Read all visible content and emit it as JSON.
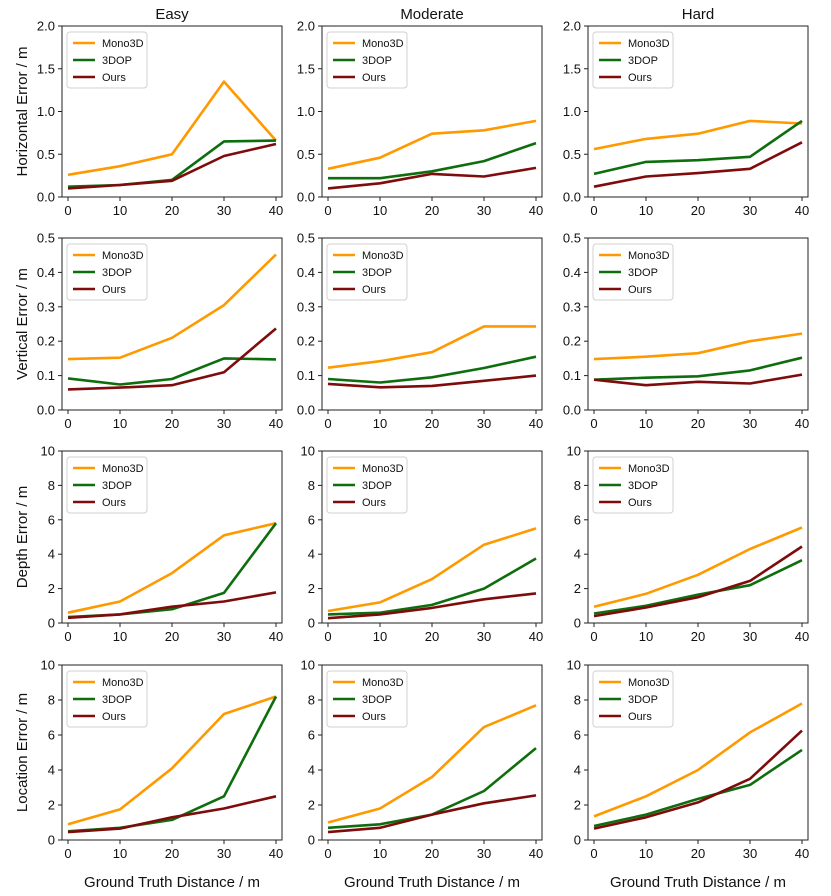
{
  "colors": {
    "Mono3D": "#ff9900",
    "3DOP": "#0e6e0e",
    "Ours": "#7f0c0c",
    "axis": "#222222",
    "legend_border": "#d0d0d0"
  },
  "figure": {
    "column_titles": [
      "Easy",
      "Moderate",
      "Hard"
    ],
    "xlabel": "Ground Truth Distance / m"
  },
  "chart_data": [
    {
      "type": "line",
      "row": 0,
      "col": 0,
      "title": "Easy",
      "xlabel": "",
      "ylabel": "Horizontal Error / m",
      "xlim": [
        0,
        40
      ],
      "ylim": [
        0,
        2.0
      ],
      "x": [
        0,
        10,
        20,
        30,
        40
      ],
      "xticks": [
        "0",
        "10",
        "20",
        "30",
        "40"
      ],
      "yticks": [
        "0.0",
        "0.5",
        "1.0",
        "1.5",
        "2.0"
      ],
      "yticks_values": [
        0,
        0.5,
        1.0,
        1.5,
        2.0
      ],
      "legend": [
        "Mono3D",
        "3DOP",
        "Ours"
      ],
      "legend_position": "top-left",
      "series": [
        {
          "name": "Mono3D",
          "values": [
            0.26,
            0.36,
            0.5,
            1.35,
            0.66
          ]
        },
        {
          "name": "3DOP",
          "values": [
            0.12,
            0.14,
            0.2,
            0.65,
            0.66
          ]
        },
        {
          "name": "Ours",
          "values": [
            0.1,
            0.14,
            0.19,
            0.48,
            0.62
          ]
        }
      ]
    },
    {
      "type": "line",
      "row": 0,
      "col": 1,
      "title": "Moderate",
      "xlabel": "",
      "ylabel": "",
      "xlim": [
        0,
        40
      ],
      "ylim": [
        0,
        2.0
      ],
      "x": [
        0,
        10,
        20,
        30,
        40
      ],
      "xticks": [
        "0",
        "10",
        "20",
        "30",
        "40"
      ],
      "yticks": [
        "0.0",
        "0.5",
        "1.0",
        "1.5",
        "2.0"
      ],
      "yticks_values": [
        0,
        0.5,
        1.0,
        1.5,
        2.0
      ],
      "legend": [
        "Mono3D",
        "3DOP",
        "Ours"
      ],
      "legend_position": "top-left",
      "series": [
        {
          "name": "Mono3D",
          "values": [
            0.33,
            0.46,
            0.74,
            0.78,
            0.89
          ]
        },
        {
          "name": "3DOP",
          "values": [
            0.22,
            0.22,
            0.3,
            0.42,
            0.63
          ]
        },
        {
          "name": "Ours",
          "values": [
            0.1,
            0.16,
            0.27,
            0.24,
            0.34
          ]
        }
      ]
    },
    {
      "type": "line",
      "row": 0,
      "col": 2,
      "title": "Hard",
      "xlabel": "",
      "ylabel": "",
      "xlim": [
        0,
        40
      ],
      "ylim": [
        0,
        2.0
      ],
      "x": [
        0,
        10,
        20,
        30,
        40
      ],
      "xticks": [
        "0",
        "10",
        "20",
        "30",
        "40"
      ],
      "yticks": [
        "0.0",
        "0.5",
        "1.0",
        "1.5",
        "2.0"
      ],
      "yticks_values": [
        0,
        0.5,
        1.0,
        1.5,
        2.0
      ],
      "legend": [
        "Mono3D",
        "3DOP",
        "Ours"
      ],
      "legend_position": "top-left",
      "series": [
        {
          "name": "Mono3D",
          "values": [
            0.56,
            0.68,
            0.74,
            0.89,
            0.86
          ]
        },
        {
          "name": "3DOP",
          "values": [
            0.27,
            0.41,
            0.43,
            0.47,
            0.89
          ]
        },
        {
          "name": "Ours",
          "values": [
            0.12,
            0.24,
            0.28,
            0.33,
            0.64
          ]
        }
      ]
    },
    {
      "type": "line",
      "row": 1,
      "col": 0,
      "title": "",
      "xlabel": "",
      "ylabel": "Vertical Error / m",
      "xlim": [
        0,
        40
      ],
      "ylim": [
        0,
        0.5
      ],
      "x": [
        0,
        10,
        20,
        30,
        40
      ],
      "xticks": [
        "0",
        "10",
        "20",
        "30",
        "40"
      ],
      "yticks": [
        "0.0",
        "0.1",
        "0.2",
        "0.3",
        "0.4",
        "0.5"
      ],
      "yticks_values": [
        0,
        0.1,
        0.2,
        0.3,
        0.4,
        0.5
      ],
      "legend": [
        "Mono3D",
        "3DOP",
        "Ours"
      ],
      "legend_position": "top-left",
      "series": [
        {
          "name": "Mono3D",
          "values": [
            0.148,
            0.152,
            0.21,
            0.305,
            0.452
          ]
        },
        {
          "name": "3DOP",
          "values": [
            0.092,
            0.074,
            0.09,
            0.15,
            0.147
          ]
        },
        {
          "name": "Ours",
          "values": [
            0.06,
            0.065,
            0.072,
            0.11,
            0.237
          ]
        }
      ]
    },
    {
      "type": "line",
      "row": 1,
      "col": 1,
      "title": "",
      "xlabel": "",
      "ylabel": "",
      "xlim": [
        0,
        40
      ],
      "ylim": [
        0,
        0.5
      ],
      "x": [
        0,
        10,
        20,
        30,
        40
      ],
      "xticks": [
        "0",
        "10",
        "20",
        "30",
        "40"
      ],
      "yticks": [
        "0.0",
        "0.1",
        "0.2",
        "0.3",
        "0.4",
        "0.5"
      ],
      "yticks_values": [
        0,
        0.1,
        0.2,
        0.3,
        0.4,
        0.5
      ],
      "legend": [
        "Mono3D",
        "3DOP",
        "Ours"
      ],
      "legend_position": "top-left",
      "series": [
        {
          "name": "Mono3D",
          "values": [
            0.123,
            0.142,
            0.168,
            0.243,
            0.243
          ]
        },
        {
          "name": "3DOP",
          "values": [
            0.09,
            0.08,
            0.095,
            0.122,
            0.155
          ]
        },
        {
          "name": "Ours",
          "values": [
            0.076,
            0.066,
            0.07,
            0.085,
            0.1
          ]
        }
      ]
    },
    {
      "type": "line",
      "row": 1,
      "col": 2,
      "title": "",
      "xlabel": "",
      "ylabel": "",
      "xlim": [
        0,
        40
      ],
      "ylim": [
        0,
        0.5
      ],
      "x": [
        0,
        10,
        20,
        30,
        40
      ],
      "xticks": [
        "0",
        "10",
        "20",
        "30",
        "40"
      ],
      "yticks": [
        "0.0",
        "0.1",
        "0.2",
        "0.3",
        "0.4",
        "0.5"
      ],
      "yticks_values": [
        0,
        0.1,
        0.2,
        0.3,
        0.4,
        0.5
      ],
      "legend": [
        "Mono3D",
        "3DOP",
        "Ours"
      ],
      "legend_position": "top-left",
      "series": [
        {
          "name": "Mono3D",
          "values": [
            0.148,
            0.155,
            0.165,
            0.2,
            0.222
          ]
        },
        {
          "name": "3DOP",
          "values": [
            0.088,
            0.094,
            0.098,
            0.115,
            0.152
          ]
        },
        {
          "name": "Ours",
          "values": [
            0.088,
            0.072,
            0.082,
            0.077,
            0.103
          ]
        }
      ]
    },
    {
      "type": "line",
      "row": 2,
      "col": 0,
      "title": "",
      "xlabel": "",
      "ylabel": "Depth Error / m",
      "xlim": [
        0,
        40
      ],
      "ylim": [
        0,
        10
      ],
      "x": [
        0,
        10,
        20,
        30,
        40
      ],
      "xticks": [
        "0",
        "10",
        "20",
        "30",
        "40"
      ],
      "yticks": [
        "0",
        "2",
        "4",
        "6",
        "8",
        "10"
      ],
      "yticks_values": [
        0,
        2,
        4,
        6,
        8,
        10
      ],
      "legend": [
        "Mono3D",
        "3DOP",
        "Ours"
      ],
      "legend_position": "top-left",
      "series": [
        {
          "name": "Mono3D",
          "values": [
            0.6,
            1.25,
            2.9,
            5.1,
            5.8
          ]
        },
        {
          "name": "3DOP",
          "values": [
            0.35,
            0.5,
            0.8,
            1.75,
            5.8
          ]
        },
        {
          "name": "Ours",
          "values": [
            0.3,
            0.5,
            0.95,
            1.25,
            1.78
          ]
        }
      ]
    },
    {
      "type": "line",
      "row": 2,
      "col": 1,
      "title": "",
      "xlabel": "",
      "ylabel": "",
      "xlim": [
        0,
        40
      ],
      "ylim": [
        0,
        10
      ],
      "x": [
        0,
        10,
        20,
        30,
        40
      ],
      "xticks": [
        "0",
        "10",
        "20",
        "30",
        "40"
      ],
      "yticks": [
        "0",
        "2",
        "4",
        "6",
        "8",
        "10"
      ],
      "yticks_values": [
        0,
        2,
        4,
        6,
        8,
        10
      ],
      "legend": [
        "Mono3D",
        "3DOP",
        "Ours"
      ],
      "legend_position": "top-left",
      "series": [
        {
          "name": "Mono3D",
          "values": [
            0.7,
            1.2,
            2.55,
            4.55,
            5.5
          ]
        },
        {
          "name": "3DOP",
          "values": [
            0.5,
            0.6,
            1.05,
            2.0,
            3.75
          ]
        },
        {
          "name": "Ours",
          "values": [
            0.28,
            0.5,
            0.88,
            1.38,
            1.72
          ]
        }
      ]
    },
    {
      "type": "line",
      "row": 2,
      "col": 2,
      "title": "",
      "xlabel": "",
      "ylabel": "",
      "xlim": [
        0,
        40
      ],
      "ylim": [
        0,
        10
      ],
      "x": [
        0,
        10,
        20,
        30,
        40
      ],
      "xticks": [
        "0",
        "10",
        "20",
        "30",
        "40"
      ],
      "yticks": [
        "0",
        "2",
        "4",
        "6",
        "8",
        "10"
      ],
      "yticks_values": [
        0,
        2,
        4,
        6,
        8,
        10
      ],
      "legend": [
        "Mono3D",
        "3DOP",
        "Ours"
      ],
      "legend_position": "top-left",
      "series": [
        {
          "name": "Mono3D",
          "values": [
            0.95,
            1.7,
            2.8,
            4.3,
            5.55
          ]
        },
        {
          "name": "3DOP",
          "values": [
            0.55,
            1.0,
            1.65,
            2.2,
            3.65
          ]
        },
        {
          "name": "Ours",
          "values": [
            0.4,
            0.9,
            1.5,
            2.45,
            4.45
          ]
        }
      ]
    },
    {
      "type": "line",
      "row": 3,
      "col": 0,
      "title": "",
      "xlabel": "Ground Truth Distance / m",
      "ylabel": "Location Error / m",
      "xlim": [
        0,
        40
      ],
      "ylim": [
        0,
        10
      ],
      "x": [
        0,
        10,
        20,
        30,
        40
      ],
      "xticks": [
        "0",
        "10",
        "20",
        "30",
        "40"
      ],
      "yticks": [
        "0",
        "2",
        "4",
        "6",
        "8",
        "10"
      ],
      "yticks_values": [
        0,
        2,
        4,
        6,
        8,
        10
      ],
      "legend": [
        "Mono3D",
        "3DOP",
        "Ours"
      ],
      "legend_position": "top-left",
      "series": [
        {
          "name": "Mono3D",
          "values": [
            0.9,
            1.75,
            4.1,
            7.2,
            8.2
          ]
        },
        {
          "name": "3DOP",
          "values": [
            0.5,
            0.7,
            1.15,
            2.5,
            8.2
          ]
        },
        {
          "name": "Ours",
          "values": [
            0.45,
            0.65,
            1.3,
            1.8,
            2.5
          ]
        }
      ]
    },
    {
      "type": "line",
      "row": 3,
      "col": 1,
      "title": "",
      "xlabel": "Ground Truth Distance / m",
      "ylabel": "",
      "xlim": [
        0,
        40
      ],
      "ylim": [
        0,
        10
      ],
      "x": [
        0,
        10,
        20,
        30,
        40
      ],
      "xticks": [
        "0",
        "10",
        "20",
        "30",
        "40"
      ],
      "yticks": [
        "0",
        "2",
        "4",
        "6",
        "8",
        "10"
      ],
      "yticks_values": [
        0,
        2,
        4,
        6,
        8,
        10
      ],
      "legend": [
        "Mono3D",
        "3DOP",
        "Ours"
      ],
      "legend_position": "top-left",
      "series": [
        {
          "name": "Mono3D",
          "values": [
            1.0,
            1.8,
            3.6,
            6.45,
            7.7
          ]
        },
        {
          "name": "3DOP",
          "values": [
            0.7,
            0.9,
            1.45,
            2.8,
            5.25
          ]
        },
        {
          "name": "Ours",
          "values": [
            0.45,
            0.7,
            1.45,
            2.1,
            2.55
          ]
        }
      ]
    },
    {
      "type": "line",
      "row": 3,
      "col": 2,
      "title": "",
      "xlabel": "Ground Truth Distance / m",
      "ylabel": "",
      "xlim": [
        0,
        40
      ],
      "ylim": [
        0,
        10
      ],
      "x": [
        0,
        10,
        20,
        30,
        40
      ],
      "xticks": [
        "0",
        "10",
        "20",
        "30",
        "40"
      ],
      "yticks": [
        "0",
        "2",
        "4",
        "6",
        "8",
        "10"
      ],
      "yticks_values": [
        0,
        2,
        4,
        6,
        8,
        10
      ],
      "legend": [
        "Mono3D",
        "3DOP",
        "Ours"
      ],
      "legend_position": "top-left",
      "series": [
        {
          "name": "Mono3D",
          "values": [
            1.35,
            2.5,
            4.0,
            6.15,
            7.8
          ]
        },
        {
          "name": "3DOP",
          "values": [
            0.8,
            1.45,
            2.35,
            3.15,
            5.15
          ]
        },
        {
          "name": "Ours",
          "values": [
            0.65,
            1.3,
            2.15,
            3.5,
            6.25
          ]
        }
      ]
    }
  ]
}
